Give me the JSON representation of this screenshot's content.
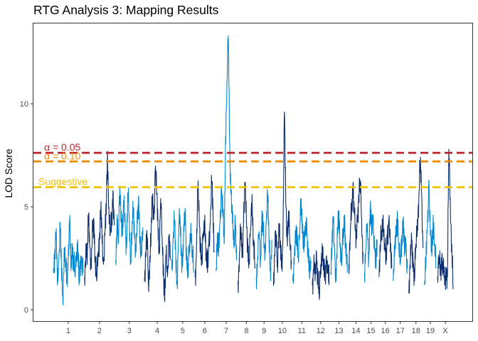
{
  "chart_data": {
    "type": "line",
    "title": "RTG Analysis 3: Mapping Results",
    "xlabel": "",
    "ylabel": "LOD Score",
    "ylim": [
      -0.55,
      13.9
    ],
    "y_ticks": [
      0,
      5,
      10
    ],
    "grid": false,
    "chromosomes": [
      "1",
      "2",
      "3",
      "4",
      "5",
      "6",
      "7",
      "8",
      "9",
      "10",
      "11",
      "12",
      "13",
      "14",
      "15",
      "16",
      "17",
      "18",
      "19",
      "X"
    ],
    "colors": {
      "odd": "#0288d1",
      "even": "#0d2f6e"
    },
    "series": [
      {
        "chr": "1",
        "values": [
          2.0,
          2.8,
          3.6,
          1.2,
          2.4,
          4.2,
          1.8,
          0.6,
          3.0,
          2.2,
          1.4,
          2.6,
          4.3,
          1.9,
          3.2,
          2.4,
          1.6,
          2.8,
          3.4,
          1.2,
          2.0,
          2.6,
          1.8
        ]
      },
      {
        "chr": "2",
        "values": [
          1.6,
          3.2,
          2.4,
          4.6,
          3.0,
          2.0,
          3.8,
          4.2,
          2.4,
          1.4,
          2.8,
          3.6,
          4.8,
          3.2,
          2.2,
          3.6,
          4.6,
          7.7,
          5.0,
          3.6,
          4.2,
          5.8,
          4.1
        ]
      },
      {
        "chr": "3",
        "values": [
          2.4,
          4.6,
          3.2,
          6.0,
          4.8,
          3.6,
          5.0,
          4.2,
          3.0,
          5.6,
          4.4,
          2.6,
          3.8,
          4.8,
          3.6,
          2.8,
          4.2,
          5.4,
          3.2,
          2.6,
          4.0
        ]
      },
      {
        "chr": "4",
        "values": [
          1.4,
          2.8,
          3.6,
          1.2,
          2.6,
          3.8,
          5.2,
          4.4,
          6.8,
          5.6,
          4.2,
          3.0,
          5.4,
          3.6,
          2.2,
          0.4,
          2.6,
          1.6,
          3.6,
          2.4
        ]
      },
      {
        "chr": "5",
        "values": [
          2.0,
          3.2,
          4.2,
          2.6,
          1.4,
          3.6,
          4.6,
          3.0,
          2.2,
          3.8,
          4.6,
          2.4,
          1.6,
          3.2,
          4.2,
          2.8,
          1.8
        ]
      },
      {
        "chr": "6",
        "values": [
          1.6,
          2.8,
          5.8,
          4.4,
          3.2,
          2.2,
          3.8,
          4.6,
          2.6,
          1.8,
          3.4,
          4.2,
          6.1,
          4.6,
          2.8
        ]
      },
      {
        "chr": "7",
        "values": [
          2.0,
          3.6,
          2.6,
          4.2,
          6.0,
          4.6,
          3.2,
          8.4,
          11.0,
          13.3,
          8.0,
          5.6,
          4.2,
          3.0,
          4.6,
          2.4
        ]
      },
      {
        "chr": "8",
        "values": [
          1.4,
          2.8,
          3.8,
          2.6,
          4.6,
          5.8,
          4.2,
          3.2,
          2.2,
          4.0,
          5.6,
          3.4,
          2.0
        ]
      },
      {
        "chr": "9",
        "values": [
          1.6,
          2.6,
          3.8,
          2.4,
          4.8,
          3.6,
          2.4,
          4.2,
          5.6,
          3.4,
          2.0,
          3.4
        ]
      },
      {
        "chr": "10",
        "values": [
          1.2,
          2.6,
          3.6,
          2.2,
          4.2,
          3.0,
          2.0,
          3.6,
          9.6,
          5.2,
          3.6,
          4.8,
          3.2,
          2.4
        ]
      },
      {
        "chr": "11",
        "values": [
          1.4,
          2.2,
          3.2,
          4.0,
          2.6,
          3.8,
          5.4,
          4.2,
          2.8,
          3.6,
          4.4,
          2.6,
          1.6,
          2.4
        ]
      },
      {
        "chr": "12",
        "values": [
          1.2,
          2.0,
          1.4,
          2.8,
          1.6,
          0.5,
          2.2,
          3.2,
          2.0,
          1.4,
          2.6,
          1.8,
          1.2
        ]
      },
      {
        "chr": "13",
        "values": [
          1.8,
          3.0,
          4.2,
          2.6,
          1.4,
          3.6,
          4.8,
          3.2,
          2.2,
          3.8,
          4.6,
          2.6,
          1.8
        ]
      },
      {
        "chr": "14",
        "values": [
          2.2,
          3.6,
          4.8,
          6.2,
          4.6,
          3.0,
          4.4,
          5.6,
          6.2,
          4.4,
          2.8
        ]
      },
      {
        "chr": "15",
        "values": [
          1.8,
          3.0,
          4.2,
          2.6,
          5.0,
          3.6,
          4.6,
          3.0,
          2.0,
          3.4
        ]
      },
      {
        "chr": "16",
        "values": [
          1.6,
          2.8,
          3.8,
          4.6,
          3.2,
          2.2,
          3.8,
          4.4,
          2.8,
          2.0
        ]
      },
      {
        "chr": "17",
        "values": [
          1.4,
          2.6,
          3.6,
          4.8,
          3.0,
          2.2,
          3.6,
          4.4,
          2.6,
          3.2,
          2.0
        ]
      },
      {
        "chr": "18",
        "values": [
          0.8,
          2.0,
          3.4,
          2.4,
          1.4,
          3.2,
          4.4,
          5.4,
          7.1,
          5.6,
          3.0
        ]
      },
      {
        "chr": "19",
        "values": [
          1.2,
          2.2,
          4.0,
          6.3,
          3.6,
          2.6,
          4.6,
          3.2,
          2.0
        ]
      },
      {
        "chr": "X",
        "values": [
          1.6,
          2.4,
          2.0,
          2.6,
          1.8,
          1.2,
          2.0,
          1.6,
          7.8,
          5.4,
          3.2,
          1.0
        ]
      }
    ],
    "thresholds": [
      {
        "label": "α = 0.05",
        "value": 7.62,
        "color": "#c0222b"
      },
      {
        "label": "α = 0.10",
        "value": 7.2,
        "color": "#f08a00"
      },
      {
        "label": "Suggestive",
        "value": 5.95,
        "color": "#f2c200"
      }
    ]
  }
}
